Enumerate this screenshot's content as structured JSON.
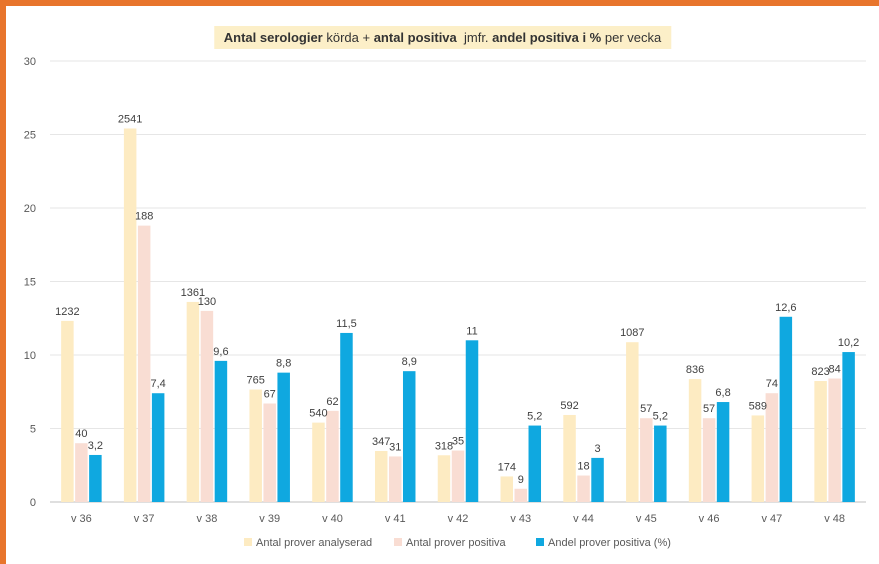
{
  "title": {
    "parts": [
      {
        "text": "Antal serologier",
        "bold": true
      },
      {
        "text": " körda + ",
        "bold": false
      },
      {
        "text": "antal positiva",
        "bold": true
      },
      {
        "text": "  jmfr. ",
        "bold": false
      },
      {
        "text": "andel positiva i %",
        "bold": true
      },
      {
        "text": " per vecka",
        "bold": false
      }
    ]
  },
  "chart_data": {
    "type": "bar",
    "title": "Antal serologier körda + antal positiva  jmfr. andel positiva i % per vecka",
    "categories": [
      "v 36",
      "v 37",
      "v 38",
      "v 39",
      "v 40",
      "v 41",
      "v 42",
      "v 43",
      "v 44",
      "v 45",
      "v 46",
      "v 47",
      "v 48"
    ],
    "ylim": [
      0,
      30
    ],
    "yticks": [
      0,
      5,
      10,
      15,
      20,
      25,
      30
    ],
    "grid": true,
    "legend_position": "bottom",
    "series": [
      {
        "name": "Antal prover analyserad",
        "color": "#FDEBC2",
        "values": [
          12.32,
          25.41,
          13.61,
          7.65,
          5.4,
          3.47,
          3.18,
          1.74,
          5.92,
          10.87,
          8.36,
          5.89,
          8.23
        ],
        "labels": [
          "1232",
          "2541",
          "1361",
          "765",
          "540",
          "347",
          "318",
          "174",
          "592",
          "1087",
          "836",
          "589",
          "823"
        ]
      },
      {
        "name": "Antal prover positiva",
        "color": "#F9DDD3",
        "values": [
          4.0,
          18.8,
          13.0,
          6.7,
          6.2,
          3.1,
          3.5,
          0.9,
          1.8,
          5.7,
          5.7,
          7.4,
          8.4
        ],
        "labels": [
          "40",
          "188",
          "130",
          "67",
          "62",
          "31",
          "35",
          "9",
          "18",
          "57",
          "57",
          "74",
          "84"
        ]
      },
      {
        "name": "Andel prover positiva (%)",
        "color": "#0FA8E0",
        "values": [
          3.2,
          7.4,
          9.6,
          8.8,
          11.5,
          8.9,
          11,
          5.2,
          3,
          5.2,
          6.8,
          12.6,
          10.2
        ],
        "labels": [
          "3,2",
          "7,4",
          "9,6",
          "8,8",
          "11,5",
          "8,9",
          "11",
          "5,2",
          "3",
          "5,2",
          "6,8",
          "12,6",
          "10,2"
        ]
      }
    ]
  }
}
